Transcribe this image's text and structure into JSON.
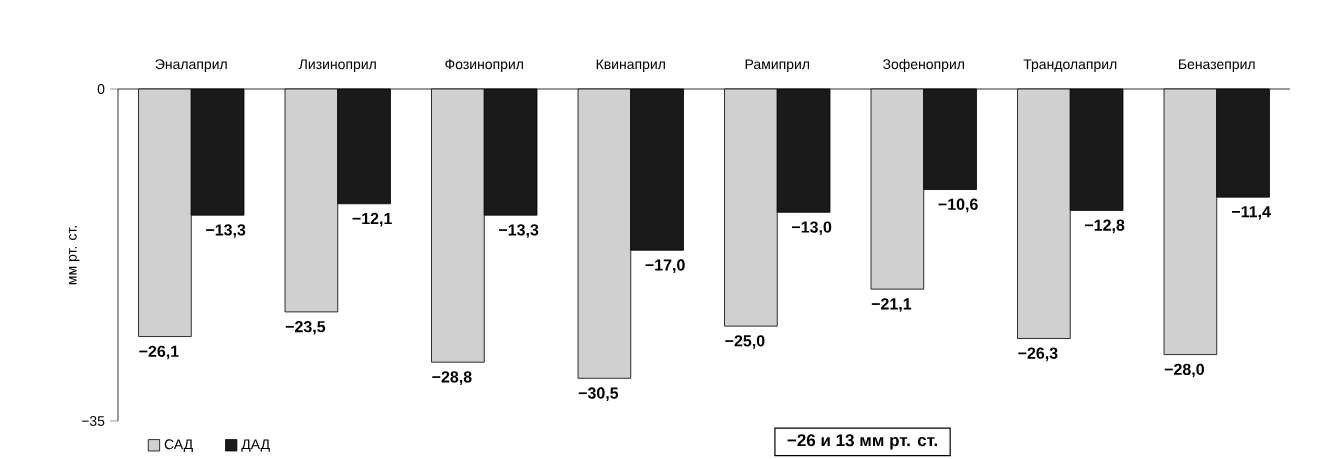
{
  "chart_data": {
    "type": "bar",
    "ylabel": "мм рт. ст.",
    "categories": [
      "Эналаприл",
      "Лизиноприл",
      "Фозиноприл",
      "Квинаприл",
      "Рамиприл",
      "Зофеноприл",
      "Трандолаприл",
      "Беназеприл"
    ],
    "series": [
      {
        "name": "САД",
        "color": "#d0d0d0",
        "values": [
          -26.1,
          -23.5,
          -28.8,
          -30.5,
          -25.0,
          -21.1,
          -26.3,
          -28.0
        ],
        "value_labels": [
          "−26,1",
          "−23,5",
          "−28,8",
          "−30,5",
          "−25,0",
          "−21,1",
          "−26,3",
          "−28,0"
        ]
      },
      {
        "name": "ДАД",
        "color": "#1a1a1a",
        "values": [
          -13.3,
          -12.1,
          -13.3,
          -17.0,
          -13.0,
          -10.6,
          -12.8,
          -11.4
        ],
        "value_labels": [
          "−13,3",
          "−12,1",
          "−13,3",
          "−17,0",
          "−13,0",
          "−10,6",
          "−12,8",
          "−11,4"
        ]
      }
    ],
    "ylim": [
      -35,
      0
    ],
    "yticks": [
      0,
      {
        "value": -35,
        "label": "−35"
      }
    ],
    "legend": "bottom left",
    "grid": false,
    "annotations": [
      "−26 и 13 мм рт. ст."
    ]
  }
}
